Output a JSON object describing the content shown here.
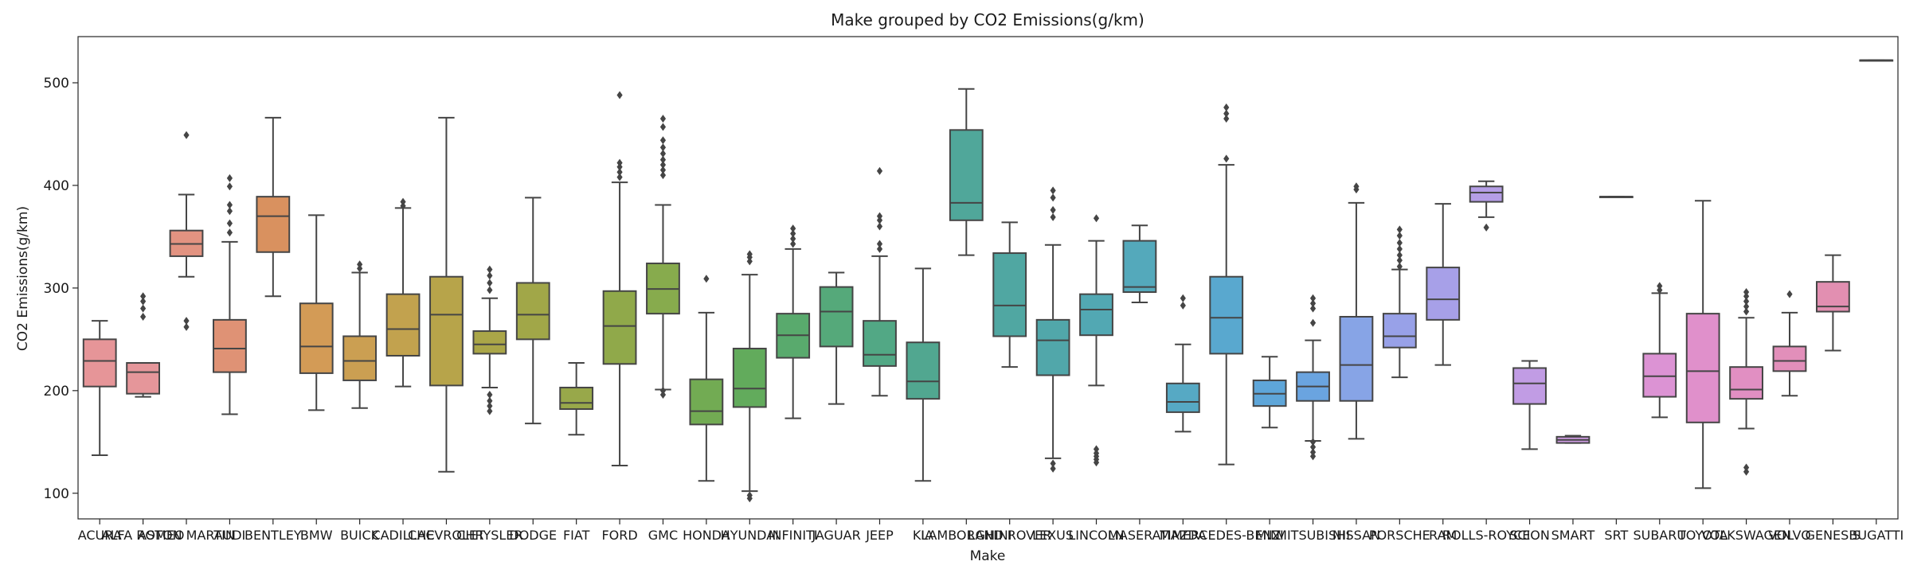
{
  "chart_data": {
    "type": "boxplot",
    "title": "Make grouped by CO2 Emissions(g/km)",
    "xlabel": "Make",
    "ylabel": "CO2 Emissions(g/km)",
    "ylim": [
      75,
      545
    ],
    "yticks": [
      100,
      200,
      300,
      400,
      500
    ],
    "grid": false,
    "categories": [
      {
        "name": "ACURA",
        "color": "#e69598",
        "q1": 204,
        "median": 229,
        "q3": 250,
        "wlo": 137,
        "whi": 268,
        "outliers": []
      },
      {
        "name": "ALFA ROMEO",
        "color": "#e5969a",
        "q1": 197,
        "median": 218,
        "q3": 227,
        "wlo": 194,
        "whi": 227,
        "outliers": [
          272,
          280,
          287,
          292
        ]
      },
      {
        "name": "ASTON MARTIN",
        "color": "#e29381",
        "q1": 331,
        "median": 343,
        "q3": 356,
        "wlo": 311,
        "whi": 391,
        "outliers": [
          262,
          268,
          449
        ]
      },
      {
        "name": "AUDI",
        "color": "#df9275",
        "q1": 218,
        "median": 241,
        "q3": 269,
        "wlo": 177,
        "whi": 345,
        "outliers": [
          354,
          363,
          375,
          381,
          399,
          407
        ]
      },
      {
        "name": "BENTLEY",
        "color": "#d9915f",
        "q1": 335,
        "median": 370,
        "q3": 389,
        "wlo": 292,
        "whi": 466,
        "outliers": []
      },
      {
        "name": "BMW",
        "color": "#d39b56",
        "q1": 217,
        "median": 243,
        "q3": 285,
        "wlo": 181,
        "whi": 371,
        "outliers": []
      },
      {
        "name": "BUICK",
        "color": "#cb9f52",
        "q1": 210,
        "median": 229,
        "q3": 253,
        "wlo": 183,
        "whi": 315,
        "outliers": [
          319,
          323
        ]
      },
      {
        "name": "CADILLAC",
        "color": "#c2a24e",
        "q1": 234,
        "median": 260,
        "q3": 294,
        "wlo": 204,
        "whi": 378,
        "outliers": [
          380,
          384
        ]
      },
      {
        "name": "CHEVROLET",
        "color": "#b7a44a",
        "q1": 205,
        "median": 274,
        "q3": 311,
        "wlo": 121,
        "whi": 466,
        "outliers": []
      },
      {
        "name": "CHRYSLER",
        "color": "#aaa648",
        "q1": 236,
        "median": 245,
        "q3": 258,
        "wlo": 203,
        "whi": 290,
        "outliers": [
          180,
          185,
          190,
          196,
          298,
          305,
          312,
          318
        ]
      },
      {
        "name": "DODGE",
        "color": "#a1a748",
        "q1": 250,
        "median": 274,
        "q3": 305,
        "wlo": 168,
        "whi": 388,
        "outliers": []
      },
      {
        "name": "FIAT",
        "color": "#98a84a",
        "q1": 182,
        "median": 188,
        "q3": 203,
        "wlo": 157,
        "whi": 227,
        "outliers": []
      },
      {
        "name": "FORD",
        "color": "#90a94a",
        "q1": 226,
        "median": 263,
        "q3": 297,
        "wlo": 127,
        "whi": 403,
        "outliers": [
          408,
          413,
          418,
          422,
          488
        ]
      },
      {
        "name": "GMC",
        "color": "#87ab4d",
        "q1": 275,
        "median": 299,
        "q3": 324,
        "wlo": 201,
        "whi": 381,
        "outliers": [
          196,
          200,
          410,
          415,
          420,
          425,
          431,
          437,
          444,
          457,
          465
        ]
      },
      {
        "name": "HONDA",
        "color": "#72ab53",
        "q1": 167,
        "median": 180,
        "q3": 211,
        "wlo": 112,
        "whi": 276,
        "outliers": [
          309
        ]
      },
      {
        "name": "HYUNDAI",
        "color": "#62ab5c",
        "q1": 184,
        "median": 202,
        "q3": 241,
        "wlo": 102,
        "whi": 313,
        "outliers": [
          95,
          98,
          326,
          330,
          333
        ]
      },
      {
        "name": "INFINITI",
        "color": "#59aa6d",
        "q1": 232,
        "median": 254,
        "q3": 275,
        "wlo": 173,
        "whi": 338,
        "outliers": [
          343,
          348,
          353,
          358
        ]
      },
      {
        "name": "JAGUAR",
        "color": "#55a97a",
        "q1": 243,
        "median": 277,
        "q3": 301,
        "wlo": 187,
        "whi": 315,
        "outliers": []
      },
      {
        "name": "JEEP",
        "color": "#52a885",
        "q1": 224,
        "median": 235,
        "q3": 268,
        "wlo": 195,
        "whi": 331,
        "outliers": [
          338,
          343,
          360,
          366,
          370,
          414
        ]
      },
      {
        "name": "KIA",
        "color": "#51a790",
        "q1": 192,
        "median": 209,
        "q3": 247,
        "wlo": 112,
        "whi": 319,
        "outliers": []
      },
      {
        "name": "LAMBORGHINI",
        "color": "#50a79a",
        "q1": 366,
        "median": 383,
        "q3": 454,
        "wlo": 332,
        "whi": 494,
        "outliers": []
      },
      {
        "name": "LAND ROVER",
        "color": "#50a7a2",
        "q1": 253,
        "median": 283,
        "q3": 334,
        "wlo": 223,
        "whi": 364,
        "outliers": []
      },
      {
        "name": "LEXUS",
        "color": "#51a7aa",
        "q1": 215,
        "median": 249,
        "q3": 269,
        "wlo": 134,
        "whi": 342,
        "outliers": [
          124,
          129,
          369,
          376,
          388,
          395
        ]
      },
      {
        "name": "LINCOLN",
        "color": "#52a8b3",
        "q1": 254,
        "median": 279,
        "q3": 294,
        "wlo": 205,
        "whi": 346,
        "outliers": [
          130,
          133,
          136,
          139,
          143,
          368
        ]
      },
      {
        "name": "MASERATI",
        "color": "#54a9bb",
        "q1": 296,
        "median": 301,
        "q3": 346,
        "wlo": 286,
        "whi": 361,
        "outliers": []
      },
      {
        "name": "MAZDA",
        "color": "#56a9c4",
        "q1": 179,
        "median": 189,
        "q3": 207,
        "wlo": 160,
        "whi": 245,
        "outliers": [
          283,
          290
        ]
      },
      {
        "name": "MERCEDES-BENZ",
        "color": "#59a8cf",
        "q1": 236,
        "median": 271,
        "q3": 311,
        "wlo": 128,
        "whi": 420,
        "outliers": [
          426,
          465,
          470,
          476
        ]
      },
      {
        "name": "MINI",
        "color": "#5ea6d9",
        "q1": 185,
        "median": 197,
        "q3": 210,
        "wlo": 164,
        "whi": 233,
        "outliers": []
      },
      {
        "name": "MITSUBISHI",
        "color": "#6aa4e0",
        "q1": 190,
        "median": 204,
        "q3": 218,
        "wlo": 151,
        "whi": 249,
        "outliers": [
          136,
          140,
          145,
          150,
          266,
          280,
          285,
          290
        ]
      },
      {
        "name": "NISSAN",
        "color": "#87a4e6",
        "q1": 190,
        "median": 225,
        "q3": 272,
        "wlo": 153,
        "whi": 383,
        "outliers": [
          396,
          399
        ]
      },
      {
        "name": "PORSCHE",
        "color": "#98a1e8",
        "q1": 242,
        "median": 253,
        "q3": 275,
        "wlo": 213,
        "whi": 318,
        "outliers": [
          321,
          327,
          332,
          338,
          344,
          351,
          357
        ]
      },
      {
        "name": "RAM",
        "color": "#a7a0e8",
        "q1": 269,
        "median": 289,
        "q3": 320,
        "wlo": 225,
        "whi": 382,
        "outliers": []
      },
      {
        "name": "ROLLS-ROYCE",
        "color": "#b59ee6",
        "q1": 384,
        "median": 393,
        "q3": 399,
        "wlo": 369,
        "whi": 404,
        "outliers": [
          359
        ]
      },
      {
        "name": "SCION",
        "color": "#c19ce4",
        "q1": 187,
        "median": 207,
        "q3": 222,
        "wlo": 143,
        "whi": 229,
        "outliers": []
      },
      {
        "name": "SMART",
        "color": "#cc9ae0",
        "q1": 149,
        "median": 152,
        "q3": 155,
        "wlo": 149,
        "whi": 156,
        "outliers": []
      },
      {
        "name": "SRT",
        "color": "#d497dc",
        "q1": 389,
        "median": 389,
        "q3": 389,
        "wlo": 389,
        "whi": 389,
        "outliers": []
      },
      {
        "name": "SUBARU",
        "color": "#dc93d4",
        "q1": 194,
        "median": 214,
        "q3": 236,
        "wlo": 174,
        "whi": 295,
        "outliers": [
          298,
          302
        ]
      },
      {
        "name": "TOYOTA",
        "color": "#e090cb",
        "q1": 169,
        "median": 219,
        "q3": 275,
        "wlo": 105,
        "whi": 385,
        "outliers": []
      },
      {
        "name": "VOLKSWAGEN",
        "color": "#e18fc2",
        "q1": 192,
        "median": 201,
        "q3": 223,
        "wlo": 163,
        "whi": 271,
        "outliers": [
          121,
          125,
          277,
          282,
          287,
          292,
          296
        ]
      },
      {
        "name": "VOLVO",
        "color": "#e28fba",
        "q1": 219,
        "median": 229,
        "q3": 243,
        "wlo": 195,
        "whi": 276,
        "outliers": [
          294
        ]
      },
      {
        "name": "GENESIS",
        "color": "#e28fb1",
        "q1": 277,
        "median": 282,
        "q3": 306,
        "wlo": 239,
        "whi": 332,
        "outliers": []
      },
      {
        "name": "BUGATTI",
        "color": "#e390a8",
        "q1": 522,
        "median": 522,
        "q3": 522,
        "wlo": 522,
        "whi": 522,
        "outliers": []
      }
    ]
  }
}
